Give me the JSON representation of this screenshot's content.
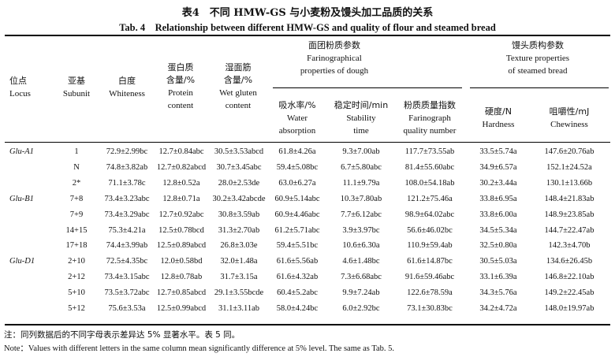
{
  "title": {
    "cn": "表4　不同 HMW-GS 与小麦粉及馒头加工品质的关系",
    "en": "Tab. 4　Relationship between different HMW-GS and quality of flour and steamed bread"
  },
  "groups": {
    "dough": {
      "cn": "面团粉质参数",
      "en1": "Farinographical",
      "en2": "properties of dough"
    },
    "texture": {
      "cn": "馒头质构参数",
      "en1": "Texture properties",
      "en2": "of steamed bread"
    }
  },
  "columns": [
    {
      "cn": "位点",
      "en1": "Locus"
    },
    {
      "cn": "亚基",
      "en1": "Subunit"
    },
    {
      "cn": "白度",
      "en1": "Whiteness"
    },
    {
      "cn0": "蛋白质",
      "cn": "含量/%",
      "en1": "Protein",
      "en2": "content"
    },
    {
      "cn0": "湿面筋",
      "cn": "含量/%",
      "en1": "Wet gluten",
      "en2": "content"
    },
    {
      "cn": "吸水率/%",
      "en1": "Water",
      "en2": "absorption"
    },
    {
      "cn": "稳定时间/min",
      "en1": "Stability",
      "en2": "time"
    },
    {
      "cn": "粉质质量指数",
      "en1": "Farinograph",
      "en2": "quality number"
    },
    {
      "cn": "硬度/N",
      "en1": "Hardness"
    },
    {
      "cn": "咀嚼性/mJ",
      "en1": "Chewiness"
    }
  ],
  "rows": [
    {
      "locus": "Glu-A1",
      "subunit": "1",
      "whiteness": "72.9±2.99bc",
      "protein": "12.7±0.84abc",
      "gluten": "30.5±3.53abcd",
      "water": "61.8±4.26a",
      "stability": "9.3±7.00ab",
      "fqn": "117.7±73.55ab",
      "hardness": "33.5±5.74a",
      "chewiness": "147.6±20.76ab"
    },
    {
      "locus": "",
      "subunit": "N",
      "whiteness": "74.8±3.82ab",
      "protein": "12.7±0.82abcd",
      "gluten": "30.7±3.45abc",
      "water": "59.4±5.08bc",
      "stability": "6.7±5.80abc",
      "fqn": "81.4±55.60abc",
      "hardness": "34.9±6.57a",
      "chewiness": "152.1±24.52a"
    },
    {
      "locus": "",
      "subunit": "2*",
      "whiteness": "71.1±3.78c",
      "protein": "12.8±0.52a",
      "gluten": "28.0±2.53de",
      "water": "63.0±6.27a",
      "stability": "11.1±9.79a",
      "fqn": "108.0±54.18ab",
      "hardness": "30.2±3.44a",
      "chewiness": "130.1±13.66b"
    },
    {
      "locus": "Glu-B1",
      "subunit": "7+8",
      "whiteness": "73.4±3.23abc",
      "protein": "12.8±0.71a",
      "gluten": "30.2±3.42abcde",
      "water": "60.9±5.14abc",
      "stability": "10.3±7.80ab",
      "fqn": "121.2±75.46a",
      "hardness": "33.8±6.95a",
      "chewiness": "148.4±21.83ab"
    },
    {
      "locus": "",
      "subunit": "7+9",
      "whiteness": "73.4±3.29abc",
      "protein": "12.7±0.92abc",
      "gluten": "30.8±3.59ab",
      "water": "60.9±4.46abc",
      "stability": "7.7±6.12abc",
      "fqn": "98.9±64.02abc",
      "hardness": "33.8±6.00a",
      "chewiness": "148.9±23.85ab"
    },
    {
      "locus": "",
      "subunit": "14+15",
      "whiteness": "75.3±4.21a",
      "protein": "12.5±0.78bcd",
      "gluten": "31.3±2.70ab",
      "water": "61.2±5.71abc",
      "stability": "3.9±3.97bc",
      "fqn": "56.6±46.02bc",
      "hardness": "34.5±5.34a",
      "chewiness": "144.7±22.47ab"
    },
    {
      "locus": "",
      "subunit": "17+18",
      "whiteness": "74.4±3.99ab",
      "protein": "12.5±0.89abcd",
      "gluten": "26.8±3.03e",
      "water": "59.4±5.51bc",
      "stability": "10.6±6.30a",
      "fqn": "110.9±59.4ab",
      "hardness": "32.5±0.80a",
      "chewiness": "142.3±4.70b"
    },
    {
      "locus": "Glu-D1",
      "subunit": "2+10",
      "whiteness": "72.5±4.35bc",
      "protein": "12.0±0.58bd",
      "gluten": "32.0±1.48a",
      "water": "61.6±5.56ab",
      "stability": "4.6±1.48bc",
      "fqn": "61.6±14.87bc",
      "hardness": "30.5±5.03a",
      "chewiness": "134.6±26.45b"
    },
    {
      "locus": "",
      "subunit": "2+12",
      "whiteness": "73.4±3.15abc",
      "protein": "12.8±0.78ab",
      "gluten": "31.7±3.15a",
      "water": "61.6±4.32ab",
      "stability": "7.3±6.68abc",
      "fqn": "91.6±59.46abc",
      "hardness": "33.1±6.39a",
      "chewiness": "146.8±22.10ab"
    },
    {
      "locus": "",
      "subunit": "5+10",
      "whiteness": "73.5±3.72abc",
      "protein": "12.7±0.85abcd",
      "gluten": "29.1±3.55bcde",
      "water": "60.4±5.2abc",
      "stability": "9.9±7.24ab",
      "fqn": "122.6±78.59a",
      "hardness": "34.3±5.76a",
      "chewiness": "149.2±22.45ab"
    },
    {
      "locus": "",
      "subunit": "5+12",
      "whiteness": "75.6±3.53a",
      "protein": "12.5±0.99abcd",
      "gluten": "31.1±3.11ab",
      "water": "58.0±4.24bc",
      "stability": "6.0±2.92bc",
      "fqn": "73.1±30.83bc",
      "hardness": "34.2±4.72a",
      "chewiness": "148.0±19.97ab"
    }
  ],
  "notes": {
    "cn": "注：同列数据后的不同字母表示差异达 5% 显著水平。表 5 同。",
    "en": "Note：Values with different letters in the same column mean significantly difference at 5% level. The same as Tab. 5."
  }
}
